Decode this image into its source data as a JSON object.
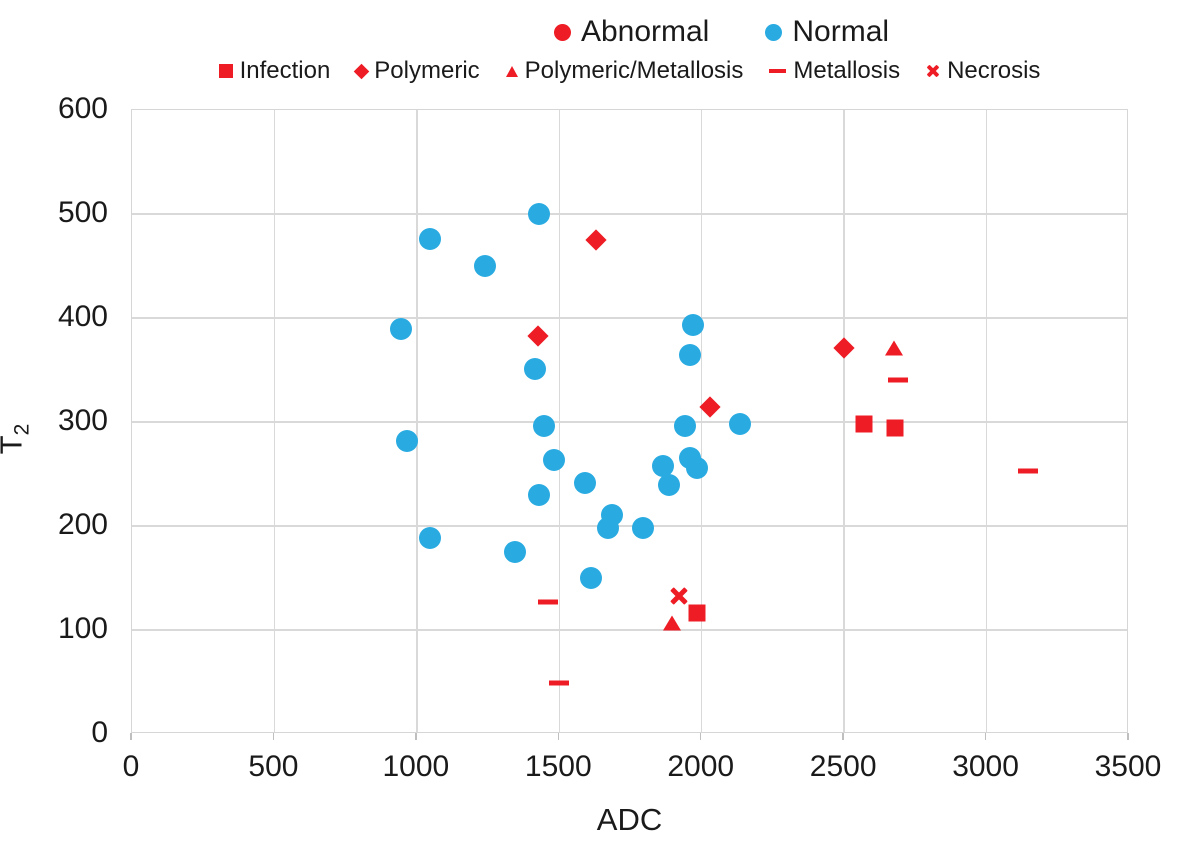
{
  "colors": {
    "abnormal_red": "#ee1c25",
    "normal_blue": "#29abe2",
    "gridline": "#d9d9d9",
    "text": "#1a1a1a"
  },
  "legend": {
    "primary": [
      {
        "label": "Abnormal",
        "marker": "circle",
        "color": "#ee1c25"
      },
      {
        "label": "Normal",
        "marker": "circle",
        "color": "#29abe2"
      }
    ],
    "secondary": [
      {
        "label": "Infection",
        "marker": "square",
        "color": "#ee1c25"
      },
      {
        "label": "Polymeric",
        "marker": "diamond",
        "color": "#ee1c25"
      },
      {
        "label": "Polymeric/Metallosis",
        "marker": "triangle",
        "color": "#ee1c25"
      },
      {
        "label": "Metallosis",
        "marker": "dash",
        "color": "#ee1c25"
      },
      {
        "label": "Necrosis",
        "marker": "x",
        "color": "#ee1c25"
      }
    ]
  },
  "axes": {
    "x_title": "ADC",
    "y_title_main": "T",
    "y_title_sub": "2"
  },
  "chart_data": {
    "type": "scatter",
    "title": "",
    "xlabel": "ADC",
    "ylabel": "T2",
    "xlim": [
      0,
      3500
    ],
    "ylim": [
      0,
      600
    ],
    "xticks": [
      0,
      500,
      1000,
      1500,
      2000,
      2500,
      3000,
      3500
    ],
    "yticks": [
      0,
      100,
      200,
      300,
      400,
      500,
      600
    ],
    "grid": true,
    "legend_position": "top",
    "series": [
      {
        "name": "Normal",
        "marker": "circle",
        "color": "#29abe2",
        "points": [
          [
            945,
            389
          ],
          [
            965,
            282
          ],
          [
            1045,
            476
          ],
          [
            1045,
            188
          ],
          [
            1240,
            450
          ],
          [
            1345,
            175
          ],
          [
            1415,
            351
          ],
          [
            1430,
            500
          ],
          [
            1430,
            230
          ],
          [
            1445,
            296
          ],
          [
            1480,
            263
          ],
          [
            1590,
            241
          ],
          [
            1610,
            150
          ],
          [
            1670,
            198
          ],
          [
            1685,
            211
          ],
          [
            1795,
            198
          ],
          [
            1865,
            258
          ],
          [
            1885,
            239
          ],
          [
            1940,
            296
          ],
          [
            1960,
            265
          ],
          [
            1985,
            256
          ],
          [
            1960,
            364
          ],
          [
            1970,
            393
          ],
          [
            2135,
            298
          ]
        ]
      },
      {
        "name": "Infection",
        "marker": "square",
        "color": "#ee1c25",
        "points": [
          [
            1985,
            116
          ],
          [
            2570,
            298
          ],
          [
            2680,
            294
          ]
        ]
      },
      {
        "name": "Polymeric",
        "marker": "diamond",
        "color": "#ee1c25",
        "points": [
          [
            1425,
            383
          ],
          [
            1630,
            475
          ],
          [
            2030,
            314
          ],
          [
            2500,
            371
          ]
        ]
      },
      {
        "name": "Polymeric/Metallosis",
        "marker": "triangle",
        "color": "#ee1c25",
        "points": [
          [
            1895,
            107
          ],
          [
            2675,
            371
          ]
        ]
      },
      {
        "name": "Metallosis",
        "marker": "dash",
        "color": "#ee1c25",
        "points": [
          [
            1460,
            127
          ],
          [
            1500,
            49
          ],
          [
            2690,
            340
          ],
          [
            3145,
            253
          ]
        ]
      },
      {
        "name": "Necrosis",
        "marker": "x",
        "color": "#ee1c25",
        "points": [
          [
            1920,
            133
          ]
        ]
      }
    ]
  }
}
